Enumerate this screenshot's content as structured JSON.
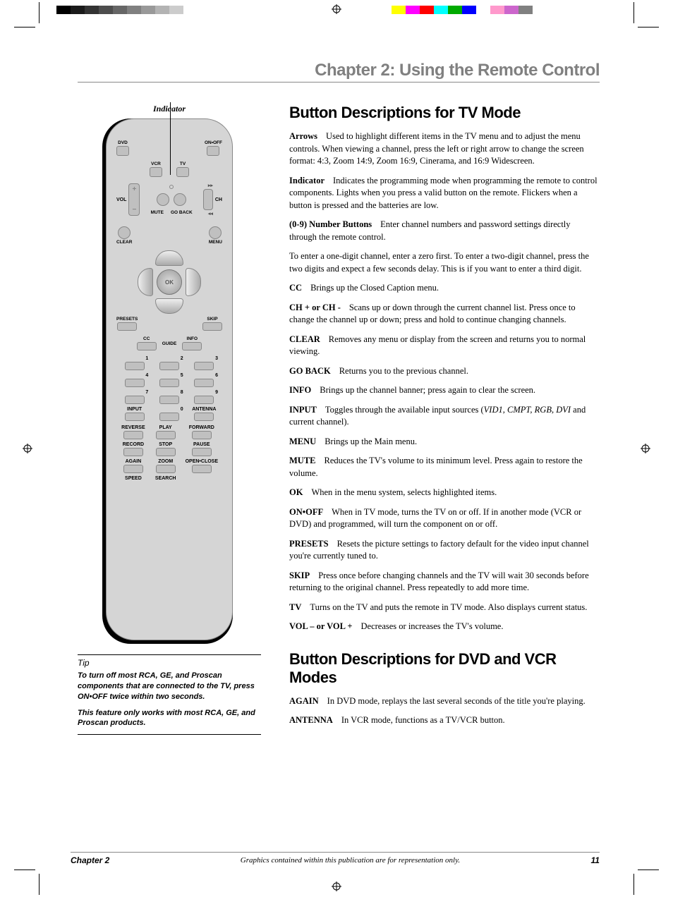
{
  "calibration": {
    "left_colors": [
      "#000000",
      "#1a1a1a",
      "#333333",
      "#4d4d4d",
      "#666666",
      "#808080",
      "#999999",
      "#b3b3b3",
      "#cccccc",
      "#ffffff"
    ],
    "right_colors": [
      "#ffff00",
      "#ff00ff",
      "#ff0000",
      "#00ffff",
      "#00aa00",
      "#0000ff",
      "#ffffff",
      "#ff99cc",
      "#cc66cc",
      "#808080"
    ]
  },
  "chapter_title": "Chapter 2: Using the Remote Control",
  "indicator_label": "Indicator",
  "remote": {
    "dvd": "DVD",
    "onoff": "ON•OFF",
    "vcr": "VCR",
    "tv": "TV",
    "vol": "VOL",
    "ch": "CH",
    "mute": "MUTE",
    "goback": "GO BACK",
    "clear": "CLEAR",
    "menu": "MENU",
    "ok": "OK",
    "presets": "PRESETS",
    "skip": "SKIP",
    "cc": "CC",
    "guide": "GUIDE",
    "info": "INFO",
    "n1": "1",
    "n2": "2",
    "n3": "3",
    "n4": "4",
    "n5": "5",
    "n6": "6",
    "n7": "7",
    "n8": "8",
    "n9": "9",
    "n0": "0",
    "input": "INPUT",
    "antenna": "ANTENNA",
    "reverse": "REVERSE",
    "play": "PLAY",
    "forward": "FORWARD",
    "record": "RECORD",
    "stop": "STOP",
    "pause": "PAUSE",
    "again": "AGAIN",
    "zoom": "ZOOM",
    "openclose": "OPEN•CLOSE",
    "speed": "SPEED",
    "search": "SEARCH"
  },
  "tip": {
    "title": "Tip",
    "p1": "To turn off most RCA, GE, and Proscan components that are connected to the TV, press ON•OFF twice within two seconds.",
    "p2": "This feature only works with most RCA, GE, and Proscan products."
  },
  "section1_title": "Button Descriptions for TV Mode",
  "items": [
    {
      "term": "Arrows",
      "text": "Used to highlight different items in the TV menu and to adjust the menu controls. When viewing a channel, press the left or right arrow to change the screen format: 4:3, Zoom 14:9, Zoom 16:9, Cinerama, and 16:9 Widescreen."
    },
    {
      "term": "Indicator",
      "text": "Indicates the programming mode when programming the remote to control components. Lights when you press a valid button on the remote. Flickers when a button is pressed and the batteries are low."
    },
    {
      "term": "(0-9) Number Buttons",
      "text": "Enter channel numbers and password settings directly through the remote control."
    },
    {
      "term": "",
      "text": "To enter a one-digit channel, enter a zero first. To enter a two-digit channel, press the two digits and expect a few seconds delay. This is if you want to enter a third digit."
    },
    {
      "term": "CC",
      "text": "Brings up the Closed Caption menu."
    },
    {
      "term": "CH + or CH -",
      "text": "Scans up or down through the current channel list. Press once to change the channel up or down; press and hold to continue changing channels."
    },
    {
      "term": "CLEAR",
      "text": "Removes any menu or display from the screen and returns you to normal viewing."
    },
    {
      "term": "GO BACK",
      "text": "Returns you to the previous channel."
    },
    {
      "term": "INFO",
      "text": "Brings up the channel banner; press again to clear the screen."
    },
    {
      "term": "INPUT",
      "text": "Toggles through the available input sources (",
      "italic": "VID1, CMPT, RGB, DVI",
      "after": " and current channel)."
    },
    {
      "term": "MENU",
      "text": "Brings up the Main menu."
    },
    {
      "term": "MUTE",
      "text": "Reduces the TV's volume to its minimum level. Press again to restore the volume."
    },
    {
      "term": "OK",
      "text": "When in the menu system, selects highlighted items."
    },
    {
      "term": "ON•OFF",
      "text": "When in TV mode, turns the TV on or off. If in another mode (VCR or DVD) and programmed, will turn the component on or off."
    },
    {
      "term": "PRESETS",
      "text": "Resets the picture settings to factory default for the video input channel you're currently tuned to."
    },
    {
      "term": "SKIP",
      "text": "Press once before changing channels and the TV will wait 30 seconds before returning to the original channel. Press repeatedly to add more time."
    },
    {
      "term": "TV",
      "text": "Turns on the TV and puts the remote in TV mode. Also displays current status."
    },
    {
      "term": "VOL – or VOL +",
      "text": "Decreases or increases the TV's volume."
    }
  ],
  "section2_title": "Button Descriptions for DVD and VCR Modes",
  "items2": [
    {
      "term": "AGAIN",
      "text": "In DVD mode, replays the last several seconds of the title you're playing."
    },
    {
      "term": "ANTENNA",
      "text": "In VCR mode, functions as a TV/VCR button."
    }
  ],
  "footer": {
    "chapter": "Chapter 2",
    "disclaimer": "Graphics contained within this publication are for representation only.",
    "page": "11"
  }
}
